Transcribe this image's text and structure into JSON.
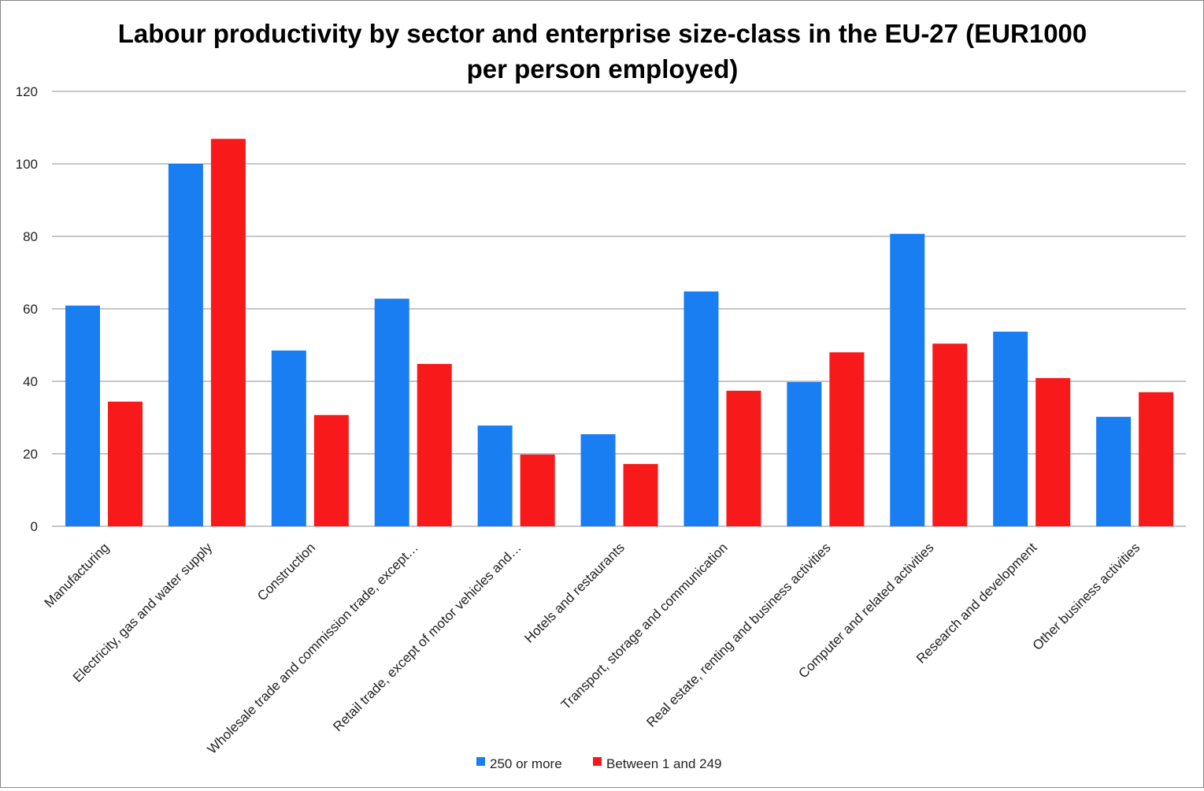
{
  "chart_data": {
    "type": "bar",
    "title_lines": [
      "Labour productivity by sector and enterprise size-class in the EU-27 (EUR1000",
      "per person employed)"
    ],
    "xlabel": "",
    "ylabel": "",
    "ylim": [
      0,
      120
    ],
    "yticks": [
      "0",
      "20",
      "40",
      "60",
      "80",
      "100",
      "120"
    ],
    "grid": true,
    "legend_position": "bottom",
    "categories": [
      "Manufacturing",
      "Electricity, gas and water supply",
      "Construction",
      "Wholesale trade and commission trade, except…",
      "Retail trade, except of motor vehicles and…",
      "Hotels and restaurants",
      "Transport, storage and communication",
      "Real estate, renting and business activities",
      "Computer and related activities",
      "Research and development",
      "Other business activities"
    ],
    "series": [
      {
        "name": "250 or more",
        "color": "#1a7ef3",
        "values": [
          60.9,
          100.0,
          48.5,
          62.8,
          27.8,
          25.4,
          64.8,
          39.8,
          80.7,
          53.7,
          30.2
        ]
      },
      {
        "name": "Between 1 and 249",
        "color": "#f81a1a",
        "values": [
          34.4,
          106.9,
          30.7,
          44.8,
          19.8,
          17.2,
          37.4,
          48.0,
          50.4,
          40.9,
          37.0
        ]
      }
    ]
  }
}
